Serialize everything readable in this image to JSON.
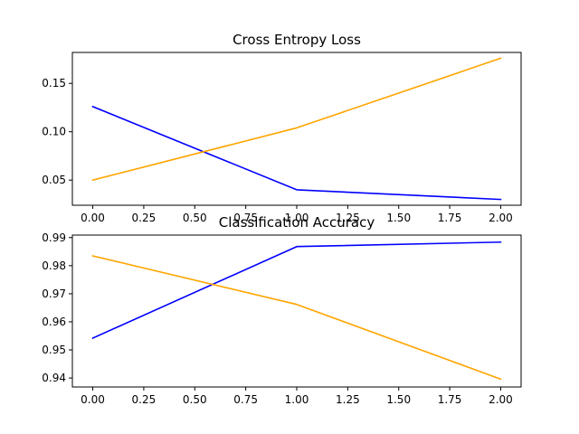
{
  "chart_data": [
    {
      "type": "line",
      "title": "Cross Entropy Loss",
      "xlabel": "",
      "ylabel": "",
      "x": [
        0,
        1,
        2
      ],
      "xlim": [
        -0.1,
        2.1
      ],
      "ylim": [
        0.024,
        0.182
      ],
      "xticks": [
        0,
        0.25,
        0.5,
        0.75,
        1,
        1.25,
        1.5,
        1.75,
        2
      ],
      "xtick_labels": [
        "0.00",
        "0.25",
        "0.50",
        "0.75",
        "1.00",
        "1.25",
        "1.50",
        "1.75",
        "2.00"
      ],
      "yticks": [
        0.05,
        0.1,
        0.15
      ],
      "ytick_labels": [
        "0.05",
        "0.10",
        "0.15"
      ],
      "grid": false,
      "series": [
        {
          "color": "#0000ff",
          "values": [
            0.126,
            0.04,
            0.03
          ]
        },
        {
          "color": "#ffa500",
          "values": [
            0.05,
            0.104,
            0.176
          ]
        }
      ]
    },
    {
      "type": "line",
      "title": "Classification Accuracy",
      "xlabel": "",
      "ylabel": "",
      "x": [
        0,
        1,
        2
      ],
      "xlim": [
        -0.1,
        2.1
      ],
      "ylim": [
        0.9368,
        0.9909
      ],
      "xticks": [
        0,
        0.25,
        0.5,
        0.75,
        1,
        1.25,
        1.5,
        1.75,
        2
      ],
      "xtick_labels": [
        "0.00",
        "0.25",
        "0.50",
        "0.75",
        "1.00",
        "1.25",
        "1.50",
        "1.75",
        "2.00"
      ],
      "yticks": [
        0.94,
        0.95,
        0.96,
        0.97,
        0.98,
        0.99
      ],
      "ytick_labels": [
        "0.94",
        "0.95",
        "0.96",
        "0.97",
        "0.98",
        "0.99"
      ],
      "grid": false,
      "series": [
        {
          "color": "#0000ff",
          "values": [
            0.9542,
            0.9868,
            0.9884
          ]
        },
        {
          "color": "#ffa500",
          "values": [
            0.9835,
            0.9662,
            0.9396
          ]
        }
      ]
    }
  ]
}
